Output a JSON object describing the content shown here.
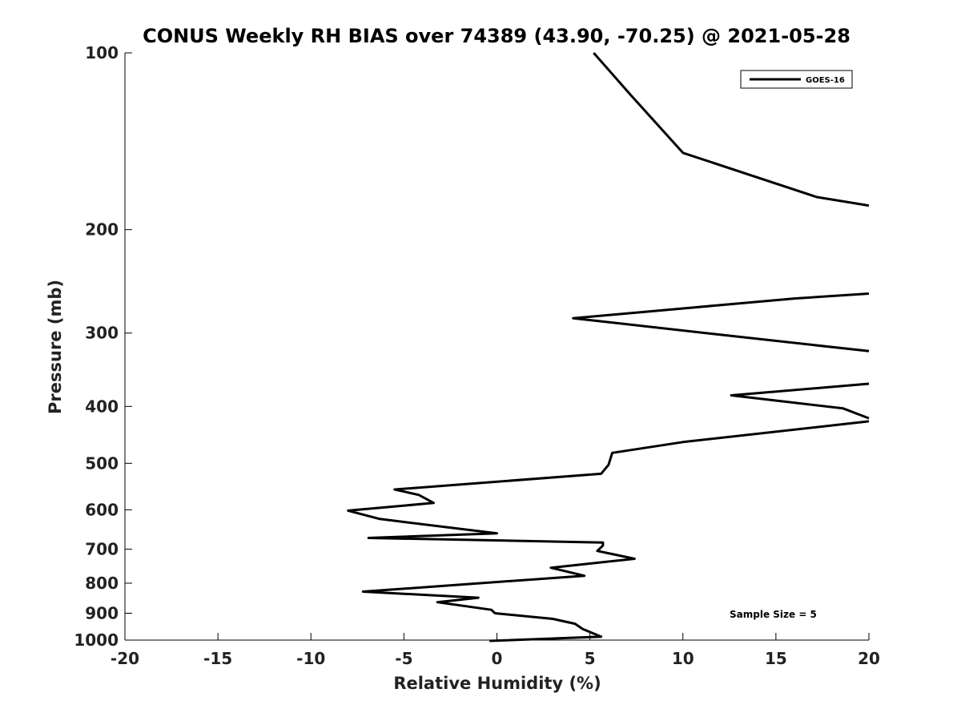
{
  "chart_data": {
    "type": "line",
    "title": "CONUS Weekly RH BIAS over 74389 (43.90, -70.25) @ 2021-05-28",
    "xlabel": "Relative Humidity (%)",
    "ylabel": "Pressure (mb)",
    "xlim": [
      -20,
      20
    ],
    "ylim": [
      100,
      1000
    ],
    "y_scale": "log",
    "y_reversed": true,
    "grid": false,
    "legend_position": "top-right",
    "x_ticks": [
      -20,
      -15,
      -10,
      -5,
      0,
      5,
      10,
      15,
      20
    ],
    "x_tick_labels": [
      "-20",
      "-15",
      "-10",
      "-5",
      "0",
      "5",
      "10",
      "15",
      "20"
    ],
    "y_ticks": [
      100,
      200,
      300,
      400,
      500,
      600,
      700,
      800,
      900,
      1000
    ],
    "y_tick_labels": [
      "100",
      "200",
      "300",
      "400",
      "500",
      "600",
      "700",
      "800",
      "900",
      "1000"
    ],
    "series": [
      {
        "name": "GOES-16",
        "color": "#000000",
        "segments": [
          {
            "x": [
              5.2,
              7.2,
              10.0,
              17.2,
              20.0
            ],
            "y": [
              100,
              118,
              148,
              176,
              182
            ]
          },
          {
            "x": [
              20.0,
              16.0,
              4.1,
              12.0,
              20.0
            ],
            "y": [
              257,
              262,
              283,
              302,
              322
            ]
          },
          {
            "x": [
              20.0,
              12.6,
              18.6,
              20.0
            ],
            "y": [
              366,
              383,
              403,
              419
            ]
          },
          {
            "x": [
              20.0,
              10.0,
              6.2,
              6.0,
              5.6,
              -5.5,
              -4.2,
              -3.4,
              -8.0,
              -6.3,
              0.0,
              -6.9,
              5.7,
              5.7,
              5.4,
              7.4,
              2.9,
              4.7,
              -7.2,
              -1.0,
              -3.2,
              -0.3,
              -0.1,
              3.0,
              4.2,
              4.6,
              5.6,
              -0.4
            ],
            "y": [
              424,
              460,
              480,
              503,
              521,
              554,
              566,
              584,
              602,
              622,
              658,
              670,
              682,
              690,
              705,
              727,
              753,
              777,
              827,
              847,
              862,
              888,
              900,
              920,
              938,
              957,
              987,
              1003
            ]
          }
        ]
      }
    ],
    "legend": {
      "entries": [
        "GOES-16"
      ]
    },
    "annotation": "Sample Size = 5"
  }
}
